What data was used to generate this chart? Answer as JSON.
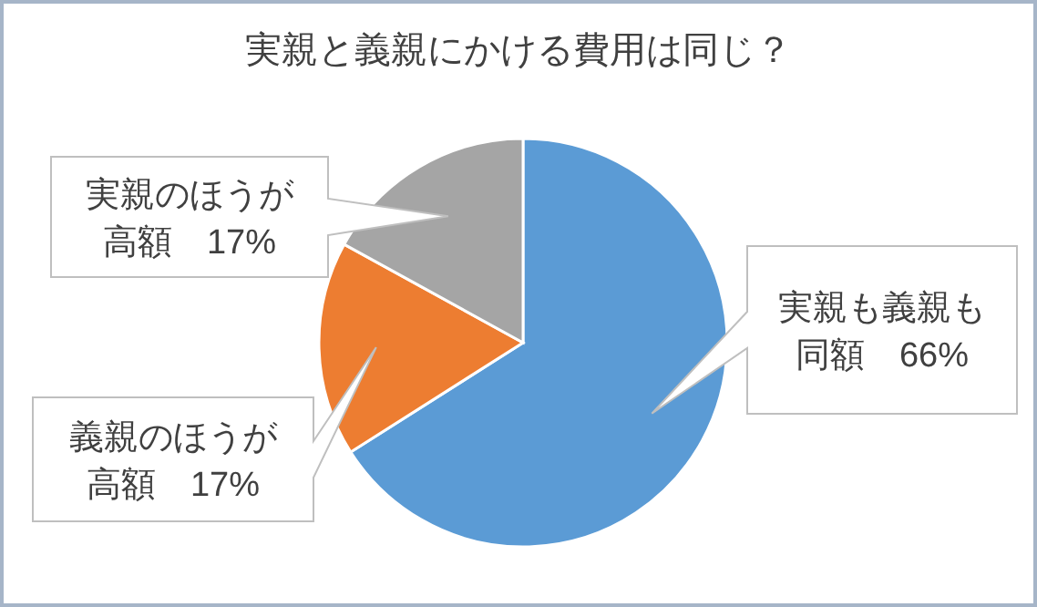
{
  "chart_data": {
    "type": "pie",
    "title": "実親と義親にかける費用は同じ？",
    "categories": [
      "実親も義親も同額",
      "義親のほうが高額",
      "実親のほうが高額"
    ],
    "values": [
      66,
      17,
      17
    ],
    "value_labels": [
      "66%",
      "17%",
      "17%"
    ],
    "colors": [
      "#5b9bd5",
      "#ed7d31",
      "#a5a5a5"
    ]
  }
}
